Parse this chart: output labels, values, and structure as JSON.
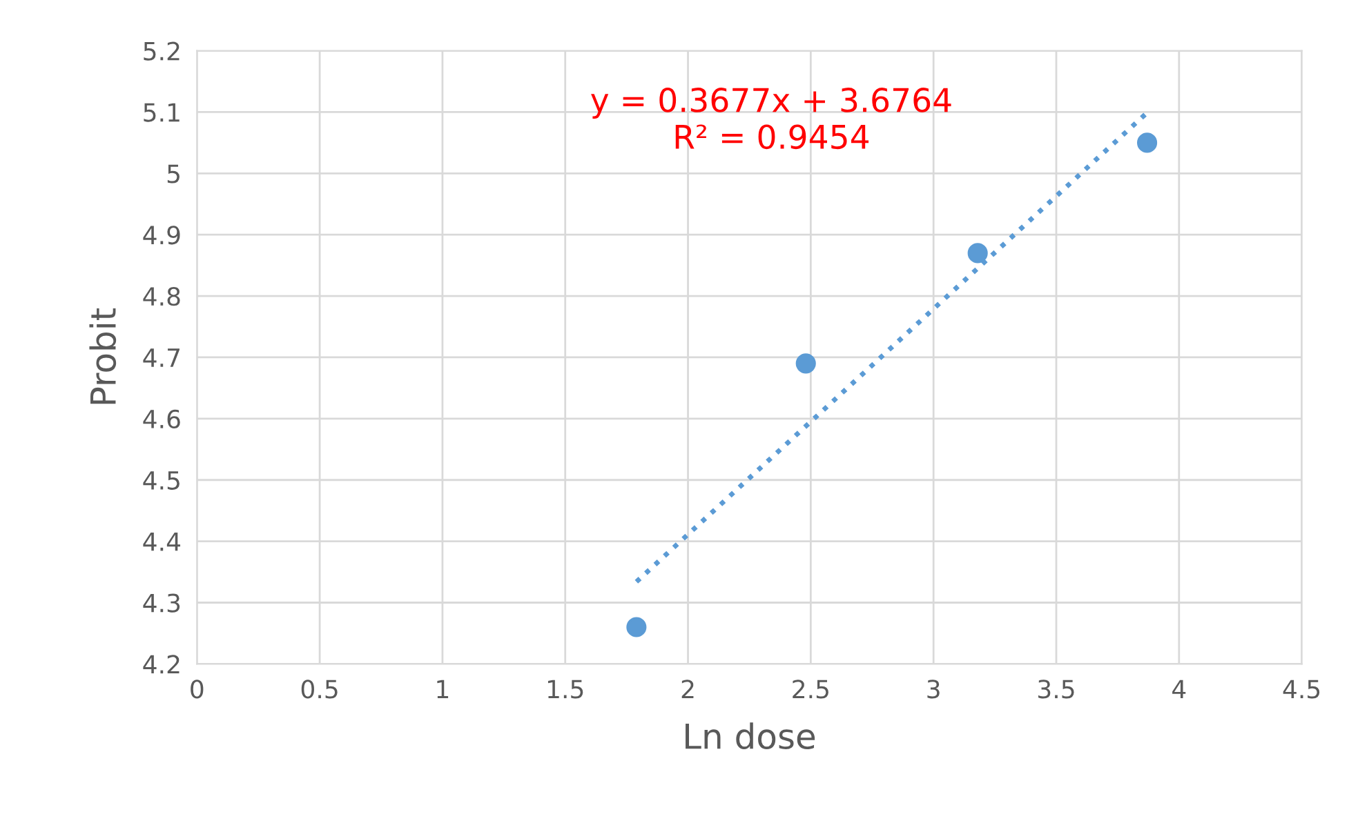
{
  "chart_data": {
    "type": "scatter",
    "xlabel": "Ln dose",
    "ylabel": "Probit",
    "xlim": [
      0,
      4.5
    ],
    "xticks": [
      0,
      0.5,
      1,
      1.5,
      2,
      2.5,
      3,
      3.5,
      4,
      4.5
    ],
    "ylim": [
      4.2,
      5.2
    ],
    "yticks": [
      4.2,
      4.3,
      4.4,
      4.5,
      4.6,
      4.7,
      4.8,
      4.9,
      5,
      5.1,
      5.2
    ],
    "grid": true,
    "marker": "circle",
    "series": [
      {
        "color": "#5b9bd5",
        "x": [
          1.79,
          2.48,
          3.18,
          3.87
        ],
        "values": [
          4.26,
          4.69,
          4.87,
          5.05
        ]
      },
      {
        "type": "line",
        "color": "#5b9bd5",
        "line_style": "dotted",
        "marker": "none",
        "x": [
          1.79,
          3.87
        ],
        "values": [
          4.334,
          5.099
        ]
      }
    ],
    "annotations": [
      "y = 0.3677x + 3.6764",
      "R² = 0.9454"
    ]
  }
}
